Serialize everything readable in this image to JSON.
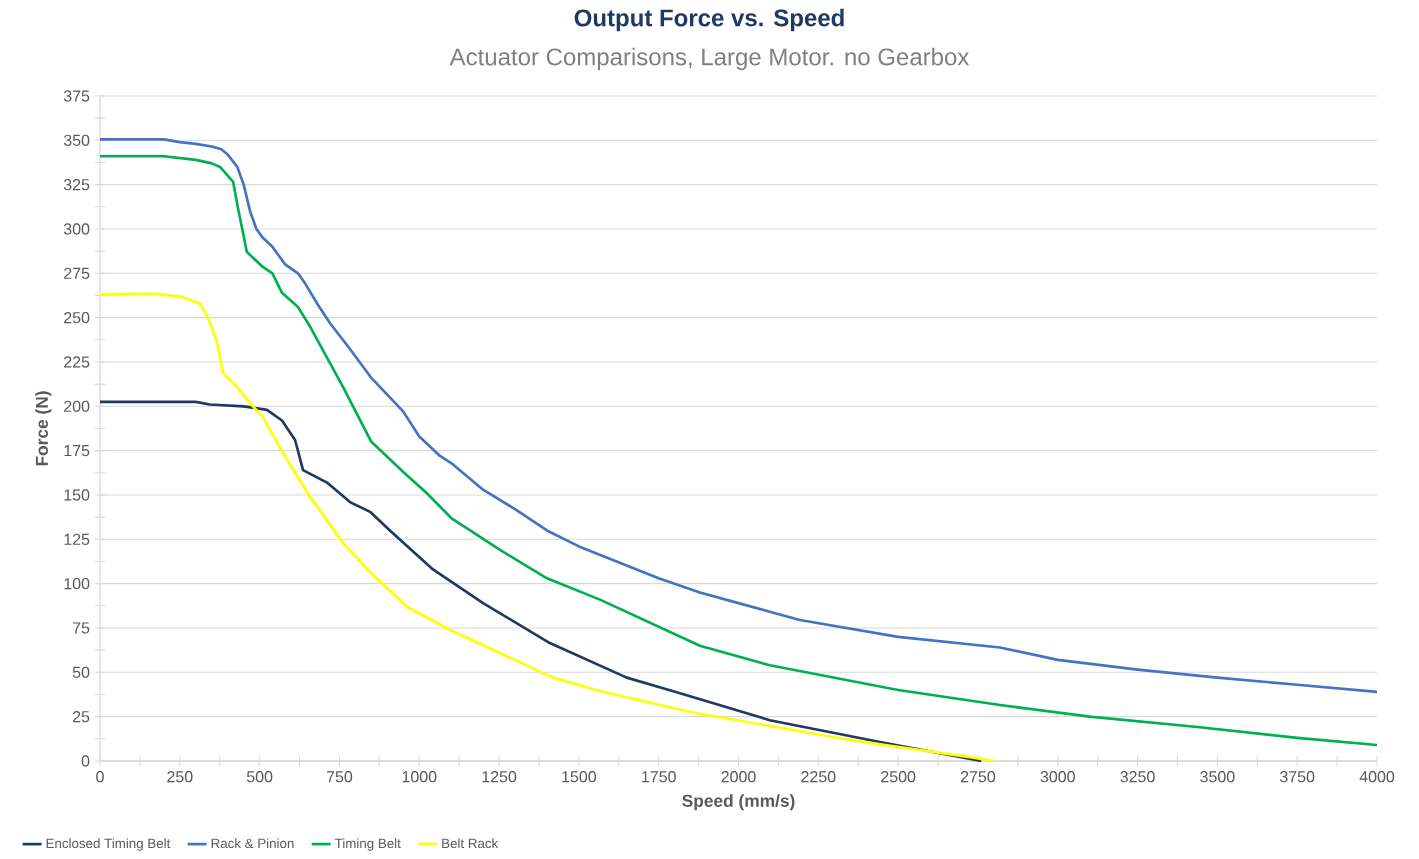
{
  "chart_data": {
    "type": "line",
    "title": "Output Force vs. Speed",
    "subtitle": "Actuator Comparisons, Large Motor. no Gearbox",
    "xlabel": "Speed (mm/s)",
    "ylabel": "Force (N)",
    "xlim": [
      0,
      4000
    ],
    "ylim": [
      0,
      375
    ],
    "xticks": [
      0,
      250,
      500,
      750,
      1000,
      1250,
      1500,
      1750,
      2000,
      2250,
      2500,
      2750,
      3000,
      3250,
      3500,
      3750,
      4000
    ],
    "yticks": [
      0,
      25,
      50,
      75,
      100,
      125,
      150,
      175,
      200,
      225,
      250,
      275,
      300,
      325,
      350,
      375
    ],
    "grid": "y",
    "legend": "bottom",
    "marker": "none",
    "line_style": "solid",
    "series": [
      {
        "name": "Enclosed Timing Belt",
        "color": "#203864",
        "x": [
          0,
          300,
          344,
          450,
          523,
          570,
          611,
          636,
          711,
          783,
          846,
          908,
          1043,
          1200,
          1409,
          1650,
          1801,
          2098,
          2443,
          2760
        ],
        "values": [
          202.5,
          202.5,
          201,
          200,
          198,
          192,
          181,
          164,
          157,
          146,
          140.5,
          130,
          108,
          89,
          66.5,
          47,
          39,
          23,
          10.7,
          0
        ]
      },
      {
        "name": "Rack & Pinion",
        "color": "#4472c4",
        "x": [
          0,
          200,
          250,
          300,
          350,
          380,
          400,
          430,
          450,
          470,
          490,
          510,
          540,
          580,
          620,
          640,
          680,
          720,
          780,
          850,
          950,
          1000,
          1065,
          1100,
          1200,
          1300,
          1400,
          1500,
          1750,
          1879,
          2000,
          2192,
          2500,
          2819,
          3000,
          3250,
          3500,
          3750,
          4000
        ],
        "values": [
          350.5,
          350.5,
          349,
          348,
          346.5,
          345,
          342,
          335,
          325,
          310,
          300,
          295,
          290,
          280,
          275,
          270,
          258,
          247,
          233,
          216,
          197,
          183,
          172,
          168,
          153,
          142,
          130,
          121,
          103,
          95,
          89,
          79.5,
          70,
          64,
          57,
          51.5,
          47,
          43,
          39
        ]
      },
      {
        "name": "Timing Belt",
        "color": "#00b050",
        "x": [
          0,
          200,
          300,
          350,
          376,
          417,
          432,
          460,
          510,
          540,
          570,
          620,
          658,
          761,
          850,
          950,
          1024,
          1100,
          1253,
          1400,
          1566,
          1879,
          2098,
          2500,
          2819,
          3100,
          3445,
          3750,
          4000
        ],
        "values": [
          341,
          341,
          339,
          337,
          335,
          326.6,
          312,
          287,
          278.6,
          275,
          264,
          256,
          245,
          211,
          180,
          163,
          151,
          137,
          119,
          103,
          91,
          65,
          54,
          40,
          31.6,
          25,
          19,
          13,
          9
        ]
      },
      {
        "name": "Belt Rack",
        "color": "#ffff00",
        "x": [
          0,
          166,
          250,
          313,
          338,
          366,
          385,
          429,
          479,
          510,
          573,
          658,
          761,
          846,
          961,
          1096,
          1419,
          1566,
          1848,
          2349,
          2725,
          2800
        ],
        "values": [
          263,
          263.4,
          262,
          258,
          250,
          237,
          219,
          211,
          200,
          194,
          173.7,
          149,
          123,
          106.6,
          87,
          74,
          47,
          39.5,
          27.6,
          11.8,
          2.2,
          0
        ]
      }
    ]
  }
}
